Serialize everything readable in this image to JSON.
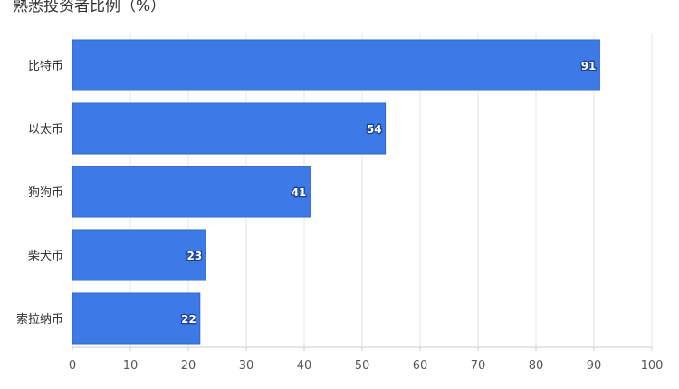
{
  "chart_data": {
    "type": "bar",
    "orientation": "horizontal",
    "title": "熟悉投资者比例（%）",
    "categories": [
      "比特币",
      "以太币",
      "狗狗币",
      "柴犬币",
      "索拉纳币"
    ],
    "values": [
      91,
      54,
      41,
      23,
      22
    ],
    "xlim": [
      0,
      100
    ],
    "xticks": [
      0,
      10,
      20,
      30,
      40,
      50,
      60,
      70,
      80,
      90,
      100
    ],
    "grid": true,
    "legend": "none",
    "bar_color": "#3d7ae6",
    "bar_edge_color": "#2f66c9"
  }
}
